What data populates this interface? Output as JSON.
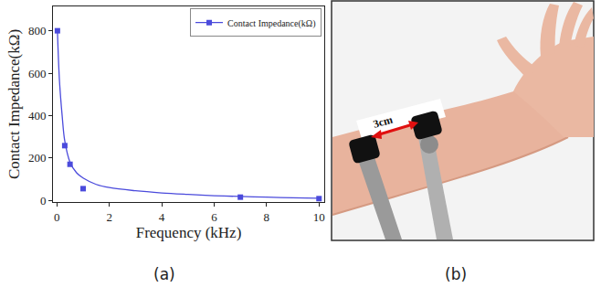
{
  "chart_data": {
    "type": "scatter",
    "x_label": "Frequency (kHz)",
    "y_label": "Contact Impedance(kΩ)",
    "xlim": [
      -0.15,
      10.2
    ],
    "xticks": [
      0,
      2,
      4,
      6,
      8,
      10
    ],
    "ylim": [
      -8,
      915
    ],
    "yticks": [
      0,
      200,
      400,
      600,
      800
    ],
    "grid": false,
    "legend": "upper right",
    "series": [
      {
        "name": "Contact Impedance(kΩ)",
        "type": "scatter",
        "marker": "square",
        "color": "#4b4bdc",
        "x": [
          0.02,
          0.3,
          0.5,
          1,
          7,
          10
        ],
        "values": [
          800,
          258,
          170,
          55,
          15,
          8
        ]
      },
      {
        "type": "line",
        "line_style": "solid",
        "color": "#4b4bdc",
        "x": [
          0.02,
          0.1,
          0.2,
          0.3,
          0.5,
          0.75,
          1,
          1.5,
          2,
          3,
          4,
          5,
          6,
          7,
          8,
          9,
          10
        ],
        "values": [
          800,
          560,
          400,
          280,
          180,
          130,
          105,
          75,
          60,
          45,
          35,
          28,
          22,
          18,
          15,
          12,
          10
        ]
      }
    ]
  },
  "panel_labels": [
    "(a)",
    "(b)"
  ],
  "illustration": {
    "distance_label": "3cm"
  }
}
